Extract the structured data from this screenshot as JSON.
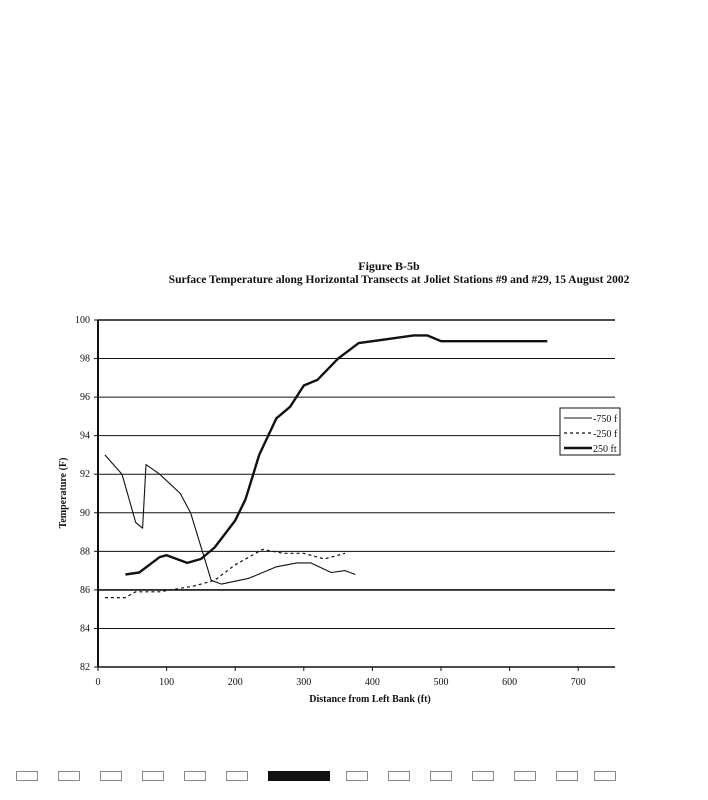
{
  "chart_data": {
    "type": "line",
    "title": "Figure B-5b",
    "subtitle": "Surface Temperature along Horizontal Transects at Joliet Stations #9 and #29, 15 August 2002",
    "xlabel": "Distance from Left Bank (ft)",
    "ylabel": "Temperature (F)",
    "xlim": [
      0,
      760
    ],
    "ylim": [
      82,
      100
    ],
    "xticks": [
      0,
      100,
      200,
      300,
      400,
      500,
      600,
      700
    ],
    "yticks": [
      82,
      84,
      86,
      88,
      90,
      92,
      94,
      96,
      98,
      100
    ],
    "grid": "horizontal",
    "legend_position": "right",
    "series": [
      {
        "name": "-750 f",
        "style": "thin",
        "x": [
          10,
          35,
          55,
          65,
          70,
          90,
          120,
          135,
          165,
          180,
          220,
          260,
          290,
          310,
          340,
          360,
          375
        ],
        "y": [
          93,
          92,
          89.5,
          89.2,
          92.5,
          92,
          91,
          90,
          86.5,
          86.3,
          86.6,
          87.2,
          87.4,
          87.4,
          86.9,
          87,
          86.8
        ]
      },
      {
        "name": "-250 f",
        "style": "dotted",
        "x": [
          10,
          40,
          55,
          90,
          140,
          170,
          200,
          240,
          270,
          300,
          330,
          360
        ],
        "y": [
          85.6,
          85.6,
          85.9,
          85.9,
          86.2,
          86.5,
          87.3,
          88.1,
          87.9,
          87.9,
          87.6,
          87.9
        ]
      },
      {
        "name": "250 ft",
        "style": "thick",
        "x": [
          40,
          60,
          90,
          100,
          130,
          150,
          170,
          200,
          215,
          235,
          260,
          280,
          300,
          320,
          350,
          380,
          420,
          460,
          480,
          500,
          550,
          600,
          655
        ],
        "y": [
          86.8,
          86.9,
          87.7,
          87.8,
          87.4,
          87.6,
          88.2,
          89.6,
          90.7,
          93,
          94.9,
          95.5,
          96.6,
          96.9,
          98,
          98.8,
          99,
          99.2,
          99.2,
          98.9,
          98.9,
          98.9,
          98.9
        ]
      }
    ]
  }
}
